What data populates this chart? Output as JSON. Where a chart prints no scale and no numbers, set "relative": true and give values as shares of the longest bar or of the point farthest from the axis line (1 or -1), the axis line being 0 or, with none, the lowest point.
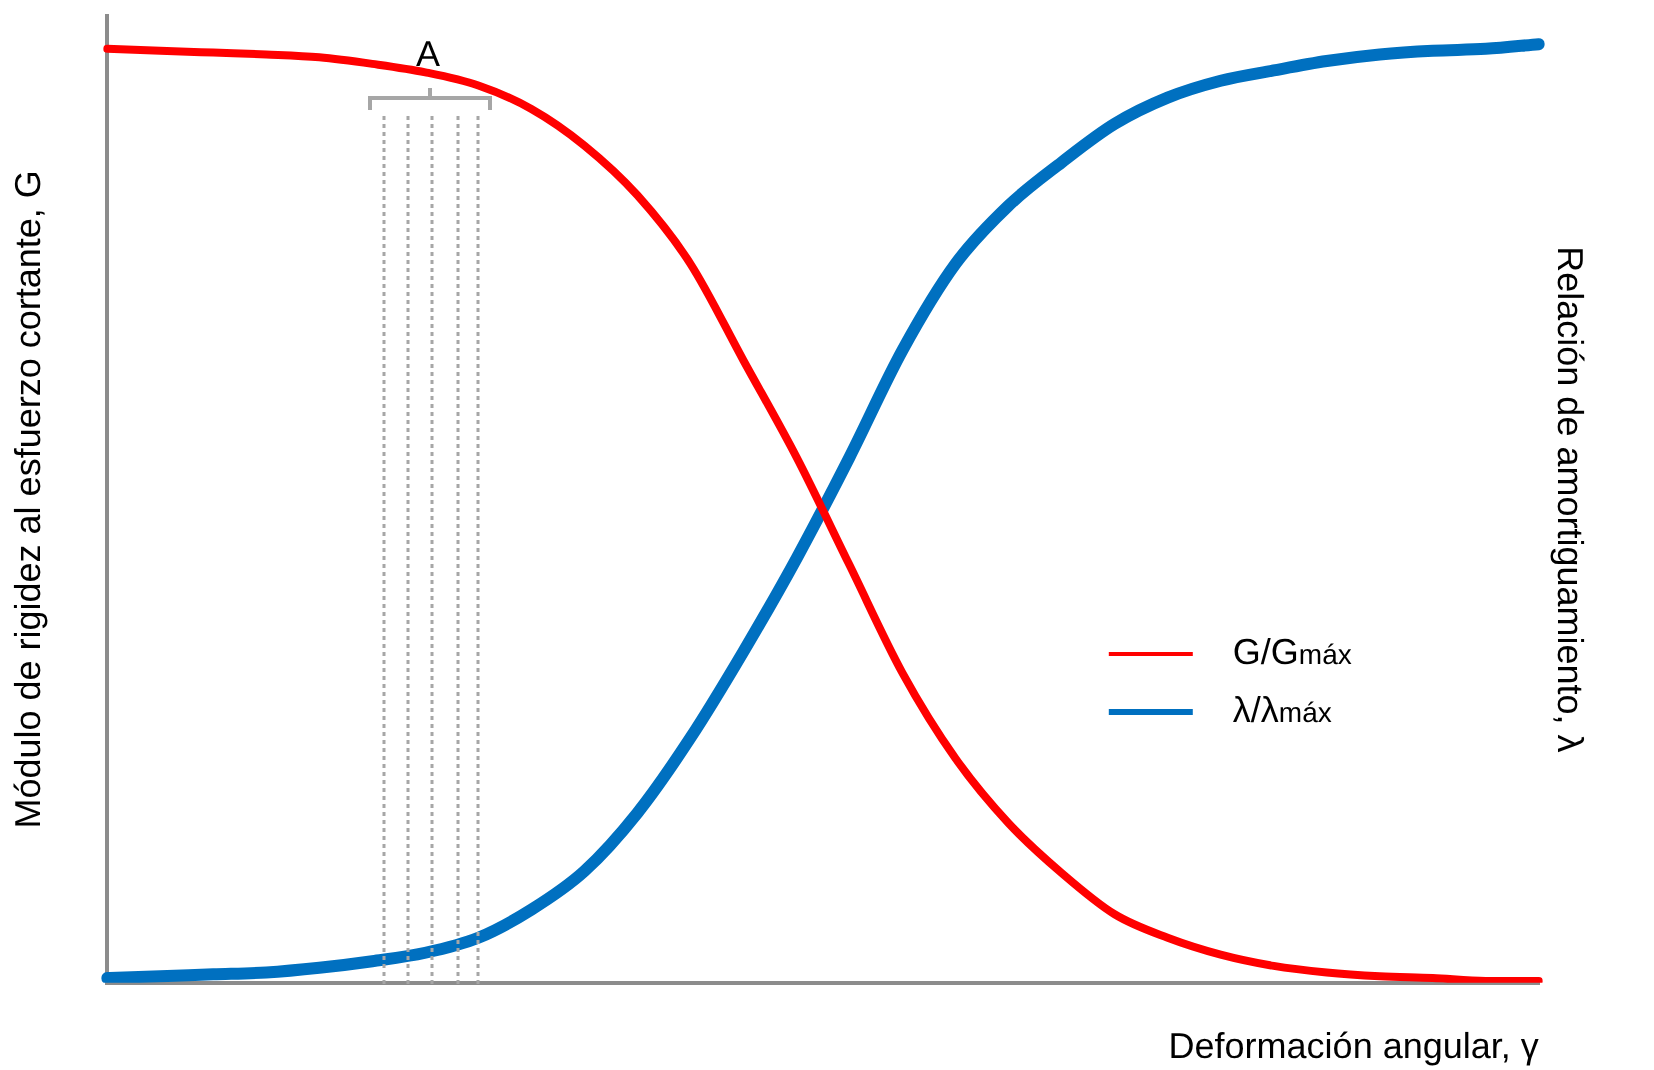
{
  "chart_data": {
    "type": "line",
    "relative": true,
    "xlabel": "Deformación angular, γ",
    "ylabel": "Módulo de rigidez al esfuerzo cortante, G",
    "y2label": "Relación de amortiguamiento, λ",
    "annotations": [
      "A"
    ],
    "legend": "right",
    "grid": false,
    "marker": "none",
    "line_style": "solid",
    "categories": [
      null,
      null,
      null,
      null,
      null,
      null,
      null,
      null,
      null,
      null,
      null,
      null,
      null,
      null,
      null,
      null,
      null,
      null,
      null,
      null,
      null,
      null,
      null,
      null,
      null,
      null,
      null,
      null
    ],
    "series": [
      {
        "name": "G/G$_{máx}$",
        "color": "#ff0000",
        "values": [
          0.995,
          0.993,
          0.991,
          0.989,
          0.986,
          0.979,
          0.97,
          0.956,
          0.931,
          0.892,
          0.839,
          0.766,
          0.663,
          0.56,
          0.445,
          0.33,
          0.239,
          0.17,
          0.117,
          0.073,
          0.048,
          0.03,
          0.018,
          0.011,
          0.007,
          0.005,
          0.002,
          0.002
        ]
      },
      {
        "name": "λ/λ$_{máx}$",
        "color": "#0070c0",
        "values": [
          0.005,
          0.007,
          0.009,
          0.011,
          0.016,
          0.023,
          0.032,
          0.048,
          0.078,
          0.119,
          0.181,
          0.261,
          0.353,
          0.452,
          0.56,
          0.674,
          0.766,
          0.828,
          0.874,
          0.915,
          0.943,
          0.961,
          0.972,
          0.982,
          0.989,
          0.993,
          0.995,
          1.0
        ]
      }
    ]
  }
}
